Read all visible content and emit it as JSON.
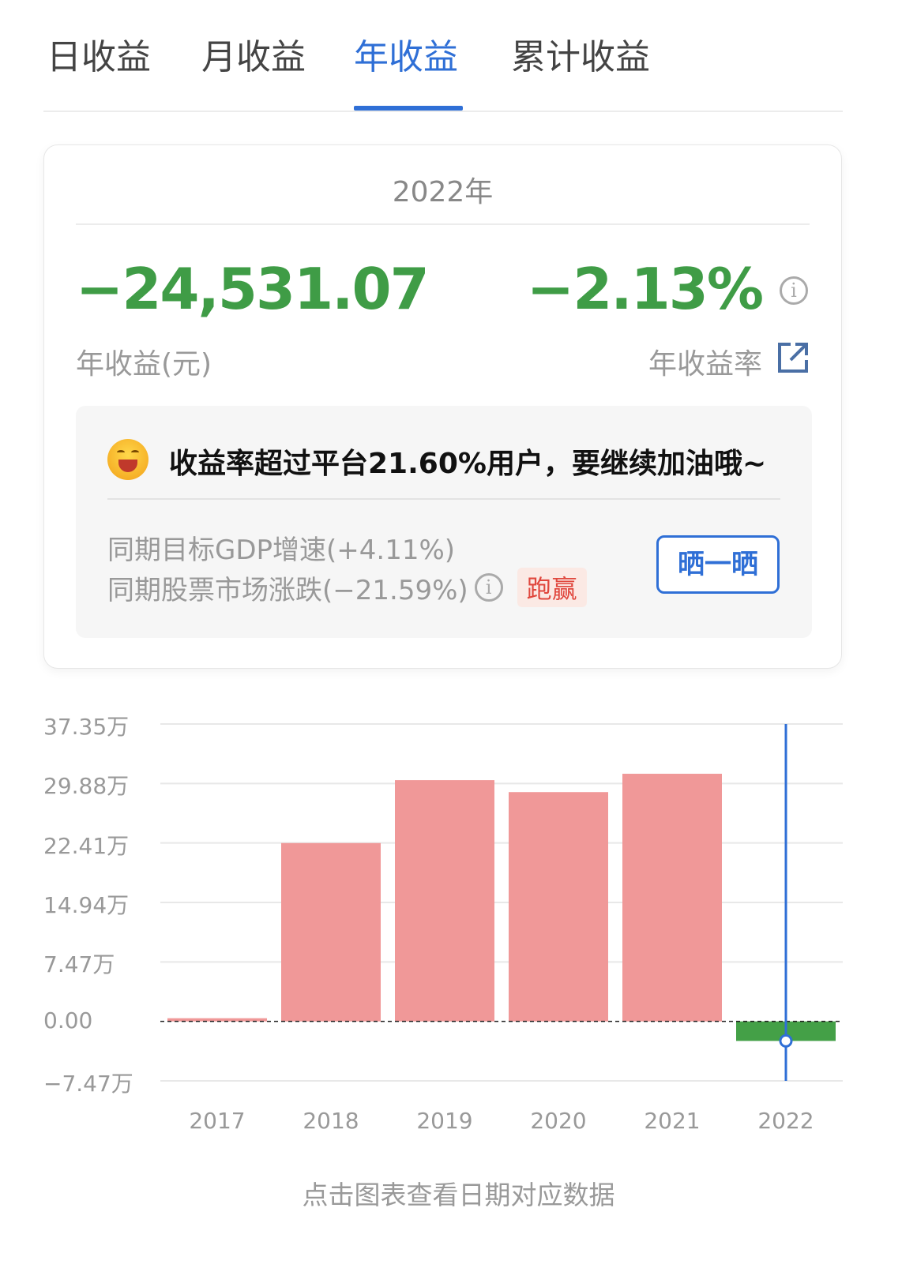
{
  "tabs": [
    {
      "label": "日收益"
    },
    {
      "label": "月收益"
    },
    {
      "label": "年收益",
      "active": true
    },
    {
      "label": "累计收益"
    }
  ],
  "summary": {
    "period": "2022年",
    "amount": "−24,531.07",
    "amount_label": "年收益(元)",
    "rate": "−2.13%",
    "rate_label": "年收益率",
    "info_icon": "info-icon",
    "link_icon": "external-link-icon",
    "message": "收益率超过平台21.60%用户，要继续加油哦~",
    "emoji": "grinning-face-icon",
    "gdp": "同期目标GDP增速(+4.11%)",
    "market": "同期股票市场涨跌(−21.59%)",
    "badge": "跑赢",
    "share_label": "晒一晒"
  },
  "colors": {
    "accent": "#2f6fd6",
    "loss": "#3f9c46",
    "gain_bar": "#f09898",
    "loss_bar": "#44a047",
    "badge": "#e0473d"
  },
  "chart_data": {
    "type": "bar",
    "categories": [
      "2017",
      "2018",
      "2019",
      "2020",
      "2021",
      "2022"
    ],
    "values": [
      4000,
      224000,
      303000,
      288000,
      311000,
      -24531.07
    ],
    "y_ticks": [
      "37.35万",
      "29.88万",
      "22.41万",
      "14.94万",
      "7.47万",
      "0.00",
      "−7.47万"
    ],
    "ylim": [
      -74700,
      373500
    ],
    "selected": "2022",
    "grid": true
  },
  "hint": "点击图表查看日期对应数据"
}
